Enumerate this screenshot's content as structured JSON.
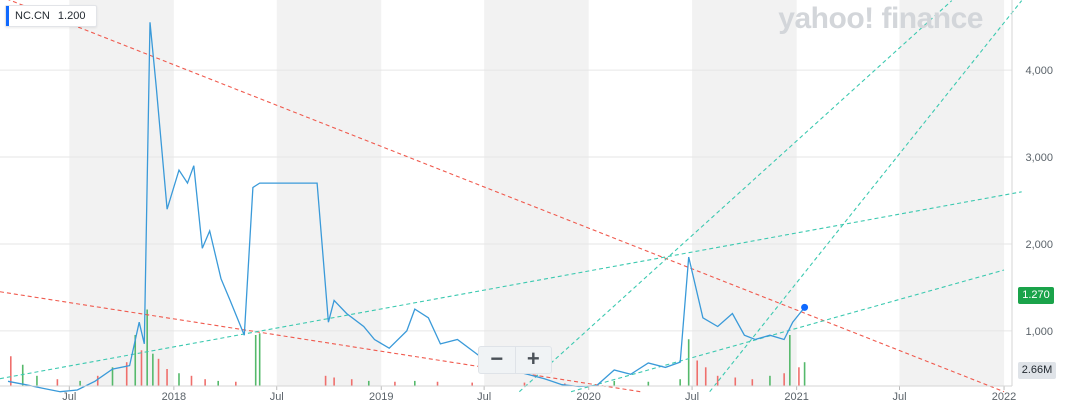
{
  "ticker": {
    "symbol": "NC.CN",
    "value": "1.200",
    "color": "#0f69ff"
  },
  "watermark": "yahoo! finance",
  "zoom": {
    "minus": "−",
    "plus": "+"
  },
  "badges": {
    "last_price": "1.270",
    "volume": "2.66M"
  },
  "colors": {
    "line": "#3a9ad9",
    "last_point": "#0f69ff",
    "up_vol": "#55b96b",
    "down_vol": "#ef6f6c",
    "trend_red": "#f05a4e",
    "trend_teal": "#3cc9b0",
    "band": "#f2f2f2",
    "grid": "#e6e6e6"
  },
  "chart_data": {
    "type": "line",
    "title": "",
    "xlabel": "",
    "ylabel": "",
    "ylim": [
      400,
      4600
    ],
    "x_ticks": [
      {
        "date": "2017-07-01",
        "label": "Jul"
      },
      {
        "date": "2018-01-01",
        "label": "2018"
      },
      {
        "date": "2018-07-01",
        "label": "Jul"
      },
      {
        "date": "2019-01-01",
        "label": "2019"
      },
      {
        "date": "2019-07-01",
        "label": "Jul"
      },
      {
        "date": "2020-01-01",
        "label": "2020"
      },
      {
        "date": "2020-07-01",
        "label": "Jul"
      },
      {
        "date": "2021-01-01",
        "label": "2021"
      },
      {
        "date": "2021-07-01",
        "label": "Jul"
      },
      {
        "date": "2022-01-01",
        "label": "2022"
      }
    ],
    "y_ticks": [
      {
        "value": 1000,
        "label": "1,000"
      },
      {
        "value": 2000,
        "label": "2,000"
      },
      {
        "value": 3000,
        "label": "3,000"
      },
      {
        "value": 4000,
        "label": "4,000"
      }
    ],
    "series": [
      {
        "points": [
          [
            "2017-03-15",
            420
          ],
          [
            "2017-04-15",
            380
          ],
          [
            "2017-05-15",
            340
          ],
          [
            "2017-06-15",
            300
          ],
          [
            "2017-07-15",
            320
          ],
          [
            "2017-08-15",
            420
          ],
          [
            "2017-09-15",
            560
          ],
          [
            "2017-10-15",
            600
          ],
          [
            "2017-11-01",
            1100
          ],
          [
            "2017-11-10",
            850
          ],
          [
            "2017-11-20",
            4550
          ],
          [
            "2017-12-01",
            3800
          ],
          [
            "2017-12-20",
            2400
          ],
          [
            "2018-01-10",
            2850
          ],
          [
            "2018-01-25",
            2700
          ],
          [
            "2018-02-05",
            2900
          ],
          [
            "2018-02-20",
            1950
          ],
          [
            "2018-03-05",
            2150
          ],
          [
            "2018-03-25",
            1600
          ],
          [
            "2018-04-10",
            1350
          ],
          [
            "2018-05-05",
            950
          ],
          [
            "2018-05-20",
            2650
          ],
          [
            "2018-06-01",
            2700
          ],
          [
            "2018-08-01",
            2700
          ],
          [
            "2018-09-10",
            2700
          ],
          [
            "2018-09-30",
            1100
          ],
          [
            "2018-10-10",
            1350
          ],
          [
            "2018-11-01",
            1200
          ],
          [
            "2018-12-01",
            1050
          ],
          [
            "2018-12-20",
            900
          ],
          [
            "2019-01-15",
            800
          ],
          [
            "2019-02-15",
            1000
          ],
          [
            "2019-03-01",
            1250
          ],
          [
            "2019-03-25",
            1150
          ],
          [
            "2019-04-15",
            850
          ],
          [
            "2019-05-15",
            900
          ],
          [
            "2019-06-15",
            750
          ],
          [
            "2019-07-15",
            600
          ],
          [
            "2019-08-15",
            550
          ],
          [
            "2019-09-15",
            500
          ],
          [
            "2019-10-15",
            450
          ],
          [
            "2019-11-15",
            380
          ],
          [
            "2019-12-15",
            360
          ],
          [
            "2020-01-15",
            370
          ],
          [
            "2020-02-15",
            550
          ],
          [
            "2020-03-15",
            500
          ],
          [
            "2020-04-15",
            630
          ],
          [
            "2020-05-15",
            580
          ],
          [
            "2020-06-10",
            640
          ],
          [
            "2020-06-25",
            1850
          ],
          [
            "2020-07-20",
            1150
          ],
          [
            "2020-08-15",
            1050
          ],
          [
            "2020-09-10",
            1200
          ],
          [
            "2020-10-01",
            950
          ],
          [
            "2020-10-20",
            900
          ],
          [
            "2020-11-15",
            950
          ],
          [
            "2020-12-10",
            900
          ],
          [
            "2020-12-25",
            1100
          ],
          [
            "2021-01-15",
            1270
          ]
        ]
      }
    ],
    "volume": {
      "ylim_max": "2.66M",
      "bars": [
        {
          "x": "2017-03-20",
          "v": 0.35,
          "up": false
        },
        {
          "x": "2017-04-10",
          "v": 0.25,
          "up": true
        },
        {
          "x": "2017-05-05",
          "v": 0.12,
          "up": true
        },
        {
          "x": "2017-06-10",
          "v": 0.08,
          "up": false
        },
        {
          "x": "2017-07-20",
          "v": 0.06,
          "up": true
        },
        {
          "x": "2017-08-20",
          "v": 0.12,
          "up": false
        },
        {
          "x": "2017-09-15",
          "v": 0.22,
          "up": true
        },
        {
          "x": "2017-10-10",
          "v": 0.28,
          "up": false
        },
        {
          "x": "2017-10-25",
          "v": 0.6,
          "up": true
        },
        {
          "x": "2017-11-05",
          "v": 0.42,
          "up": false
        },
        {
          "x": "2017-11-15",
          "v": 0.9,
          "up": true
        },
        {
          "x": "2017-11-25",
          "v": 0.38,
          "up": true
        },
        {
          "x": "2017-12-05",
          "v": 0.32,
          "up": false
        },
        {
          "x": "2017-12-20",
          "v": 0.2,
          "up": false
        },
        {
          "x": "2018-01-10",
          "v": 0.15,
          "up": true
        },
        {
          "x": "2018-02-01",
          "v": 0.12,
          "up": false
        },
        {
          "x": "2018-02-25",
          "v": 0.08,
          "up": false
        },
        {
          "x": "2018-03-20",
          "v": 0.06,
          "up": true
        },
        {
          "x": "2018-04-20",
          "v": 0.05,
          "up": false
        },
        {
          "x": "2018-05-25",
          "v": 0.6,
          "up": true
        },
        {
          "x": "2018-06-01",
          "v": 0.62,
          "up": true
        },
        {
          "x": "2018-09-25",
          "v": 0.12,
          "up": false
        },
        {
          "x": "2018-10-10",
          "v": 0.1,
          "up": false
        },
        {
          "x": "2018-11-10",
          "v": 0.08,
          "up": false
        },
        {
          "x": "2018-12-10",
          "v": 0.06,
          "up": true
        },
        {
          "x": "2019-01-25",
          "v": 0.05,
          "up": false
        },
        {
          "x": "2019-03-01",
          "v": 0.06,
          "up": true
        },
        {
          "x": "2019-04-10",
          "v": 0.05,
          "up": false
        },
        {
          "x": "2019-06-10",
          "v": 0.04,
          "up": false
        },
        {
          "x": "2019-09-10",
          "v": 0.04,
          "up": false
        },
        {
          "x": "2019-11-20",
          "v": 0.03,
          "up": false
        },
        {
          "x": "2020-02-15",
          "v": 0.06,
          "up": true
        },
        {
          "x": "2020-04-15",
          "v": 0.05,
          "up": true
        },
        {
          "x": "2020-06-10",
          "v": 0.08,
          "up": true
        },
        {
          "x": "2020-06-25",
          "v": 0.55,
          "up": true
        },
        {
          "x": "2020-07-10",
          "v": 0.3,
          "up": false
        },
        {
          "x": "2020-07-25",
          "v": 0.22,
          "up": false
        },
        {
          "x": "2020-08-15",
          "v": 0.12,
          "up": false
        },
        {
          "x": "2020-09-15",
          "v": 0.1,
          "up": false
        },
        {
          "x": "2020-10-15",
          "v": 0.08,
          "up": false
        },
        {
          "x": "2020-11-15",
          "v": 0.12,
          "up": true
        },
        {
          "x": "2020-12-10",
          "v": 0.15,
          "up": false
        },
        {
          "x": "2020-12-20",
          "v": 0.6,
          "up": true
        },
        {
          "x": "2021-01-05",
          "v": 0.22,
          "up": false
        },
        {
          "x": "2021-01-15",
          "v": 0.28,
          "up": true
        }
      ]
    },
    "trendlines": [
      {
        "color": "red",
        "from": [
          "2017-03-01",
          4850
        ],
        "to": [
          "2022-01-01",
          300
        ]
      },
      {
        "color": "red",
        "from": [
          "2017-03-01",
          1450
        ],
        "to": [
          "2020-04-01",
          300
        ]
      },
      {
        "color": "teal",
        "from": [
          "2017-03-01",
          450
        ],
        "to": [
          "2022-02-01",
          2600
        ]
      },
      {
        "color": "teal",
        "from": [
          "2019-09-01",
          300
        ],
        "to": [
          "2021-10-01",
          4800
        ]
      },
      {
        "color": "teal",
        "from": [
          "2020-08-01",
          300
        ],
        "to": [
          "2022-02-01",
          4800
        ]
      },
      {
        "color": "teal",
        "from": [
          "2019-12-01",
          300
        ],
        "to": [
          "2022-01-01",
          1700
        ]
      }
    ]
  }
}
